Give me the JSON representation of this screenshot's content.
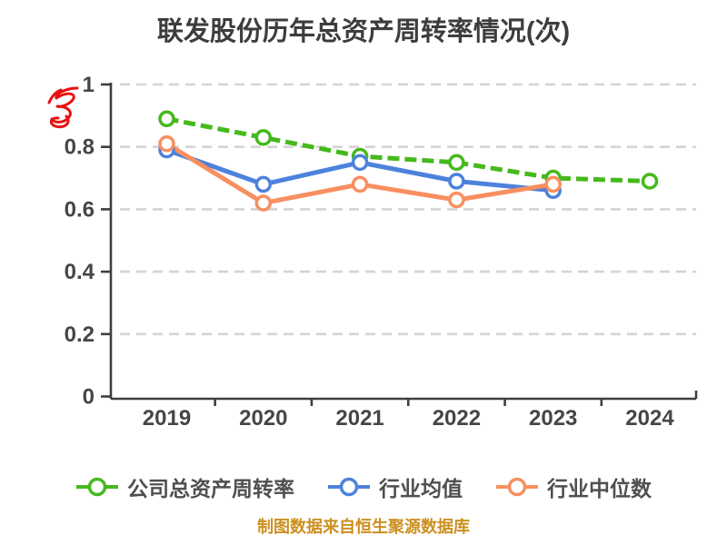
{
  "title": "联发股份历年总资产周转率情况(次)",
  "footer_note": "制图数据来自恒生聚源数据库",
  "colors": {
    "series_company": "#46b91c",
    "series_industry_mean": "#4d82dc",
    "series_industry_median": "#f88f60",
    "grid": "#d4d4d4",
    "axis": "#3f3f3f",
    "tick_label": "#464646",
    "title": "#3d3d3d",
    "footer": "#cc9020",
    "annotation": "#e81111",
    "marker_fill": "#ffffff"
  },
  "annotation": {
    "type": "red-handwritten-scribble"
  },
  "chart_data": {
    "type": "line",
    "title": "联发股份历年总资产周转率情况(次)",
    "xlabel": "",
    "ylabel": "",
    "categories": [
      "2019",
      "2020",
      "2021",
      "2022",
      "2023",
      "2024"
    ],
    "series": [
      {
        "name": "公司总资产周转率",
        "color": "#46b91c",
        "line_style": "dashed",
        "values": [
          0.89,
          0.83,
          0.77,
          0.75,
          0.7,
          0.69
        ]
      },
      {
        "name": "行业均值",
        "color": "#4d82dc",
        "line_style": "solid",
        "values": [
          0.79,
          0.68,
          0.75,
          0.69,
          0.66,
          null
        ]
      },
      {
        "name": "行业中位数",
        "color": "#f88f60",
        "line_style": "solid",
        "values": [
          0.81,
          0.62,
          0.68,
          0.63,
          0.68,
          null
        ]
      }
    ],
    "ylim": [
      0,
      1
    ],
    "yticks": [
      0,
      0.2,
      0.4,
      0.6,
      0.8,
      1
    ],
    "ytick_labels": [
      "0",
      "0.2",
      "0.4",
      "0.6",
      "0.8",
      "1"
    ],
    "grid": "horizontal-dashed",
    "legend_position": "bottom",
    "marker": "open-circle"
  }
}
